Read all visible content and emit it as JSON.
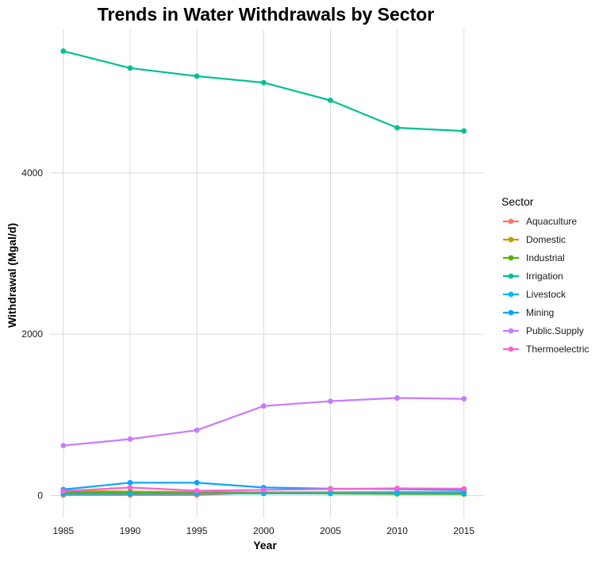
{
  "chart_data": {
    "type": "line",
    "title": "Trends in Water Withdrawals by Sector",
    "xlabel": "Year",
    "ylabel": "Withdrawal (Mgal/d)",
    "x": [
      1985,
      1990,
      1995,
      2000,
      2005,
      2010,
      2015
    ],
    "xticks": [
      "1985",
      "1990",
      "1995",
      "2000",
      "2005",
      "2010",
      "2015"
    ],
    "yticks": [
      "0",
      "2000",
      "4000"
    ],
    "ytick_values": [
      0,
      2000,
      4000
    ],
    "xlim": [
      1984,
      2016.5
    ],
    "ylim": [
      -280,
      5780
    ],
    "grid": true,
    "legend": {
      "title": "Sector",
      "position": "right"
    },
    "series": [
      {
        "name": "Aquaculture",
        "color": "#F8766D",
        "values": [
          5,
          6,
          6,
          40,
          42,
          45,
          48
        ]
      },
      {
        "name": "Domestic",
        "color": "#C49A00",
        "values": [
          60,
          50,
          45,
          40,
          35,
          30,
          25
        ]
      },
      {
        "name": "Industrial",
        "color": "#53B400",
        "values": [
          40,
          35,
          30,
          28,
          25,
          20,
          18
        ]
      },
      {
        "name": "Irrigation",
        "color": "#00C094",
        "values": [
          5510,
          5300,
          5200,
          5120,
          4900,
          4560,
          4520
        ]
      },
      {
        "name": "Livestock",
        "color": "#00B6EB",
        "values": [
          20,
          22,
          24,
          26,
          28,
          30,
          30
        ]
      },
      {
        "name": "Mining",
        "color": "#06A4FF",
        "values": [
          75,
          160,
          160,
          100,
          85,
          80,
          70
        ]
      },
      {
        "name": "Public.Supply",
        "color": "#C77CFF",
        "values": [
          620,
          700,
          810,
          1110,
          1170,
          1210,
          1200
        ]
      },
      {
        "name": "Thermoelectric",
        "color": "#FB61D7",
        "values": [
          55,
          100,
          60,
          70,
          80,
          90,
          85
        ]
      }
    ]
  }
}
